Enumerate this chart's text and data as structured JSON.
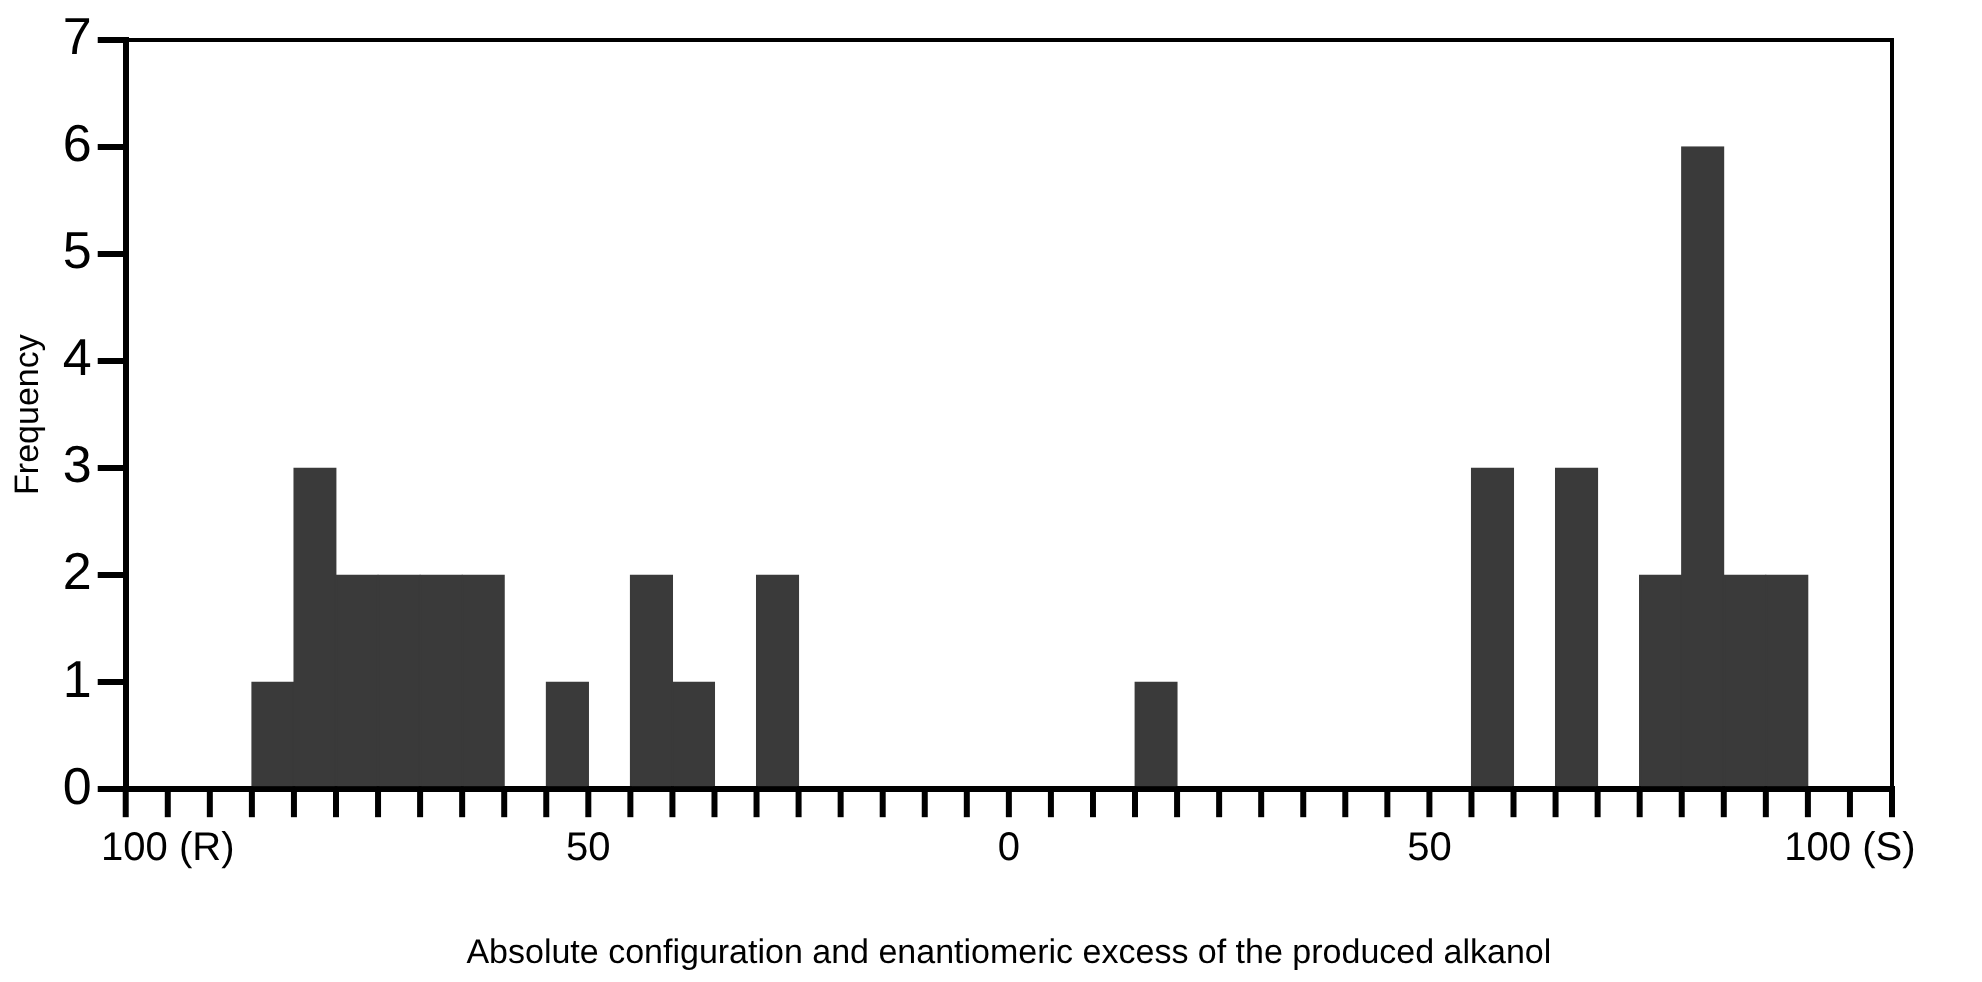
{
  "chart_data": {
    "type": "bar",
    "xlabel": "Absolute configuration and enantiomeric excess of the produced alkanol",
    "ylabel": "Frequency",
    "x": [
      -87.5,
      -82.5,
      -77.5,
      -72.5,
      -67.5,
      -62.5,
      -57.5,
      -52.5,
      -47.5,
      -42.5,
      -37.5,
      -32.5,
      -27.5,
      -22.5,
      -17.5,
      -12.5,
      -7.5,
      -2.5,
      2.5,
      7.5,
      12.5,
      17.5,
      22.5,
      27.5,
      32.5,
      37.5,
      42.5,
      47.5,
      52.5,
      57.5,
      62.5,
      67.5,
      72.5,
      77.5,
      82.5,
      87.5,
      92.5
    ],
    "values": [
      1,
      3,
      2,
      2,
      2,
      2,
      0,
      1,
      0,
      2,
      1,
      0,
      2,
      0,
      0,
      0,
      0,
      0,
      0,
      0,
      0,
      1,
      0,
      0,
      0,
      0,
      0,
      0,
      0,
      3,
      0,
      3,
      0,
      2,
      6,
      2,
      2
    ],
    "color": "#3a3a3a",
    "xlim": [
      -105,
      105
    ],
    "xticks": [
      {
        "value": -105,
        "label": null
      },
      {
        "value": -100,
        "label": "100 (R)"
      },
      {
        "value": -95,
        "label": null
      },
      {
        "value": -90,
        "label": null
      },
      {
        "value": -85,
        "label": null
      },
      {
        "value": -80,
        "label": null
      },
      {
        "value": -75,
        "label": null
      },
      {
        "value": -70,
        "label": null
      },
      {
        "value": -65,
        "label": null
      },
      {
        "value": -60,
        "label": null
      },
      {
        "value": -55,
        "label": null
      },
      {
        "value": -50,
        "label": "50"
      },
      {
        "value": -45,
        "label": null
      },
      {
        "value": -40,
        "label": null
      },
      {
        "value": -35,
        "label": null
      },
      {
        "value": -30,
        "label": null
      },
      {
        "value": -25,
        "label": null
      },
      {
        "value": -20,
        "label": null
      },
      {
        "value": -15,
        "label": null
      },
      {
        "value": -10,
        "label": null
      },
      {
        "value": -5,
        "label": null
      },
      0,
      {
        "value": 5,
        "label": null
      },
      {
        "value": 10,
        "label": null
      },
      {
        "value": 15,
        "label": null
      },
      {
        "value": 20,
        "label": null
      },
      {
        "value": 25,
        "label": null
      },
      {
        "value": 30,
        "label": null
      },
      {
        "value": 35,
        "label": null
      },
      {
        "value": 40,
        "label": null
      },
      {
        "value": 45,
        "label": null
      },
      {
        "value": 50,
        "label": "50"
      },
      {
        "value": 55,
        "label": null
      },
      {
        "value": 60,
        "label": null
      },
      {
        "value": 65,
        "label": null
      },
      {
        "value": 70,
        "label": null
      },
      {
        "value": 75,
        "label": null
      },
      {
        "value": 80,
        "label": null
      },
      {
        "value": 85,
        "label": null
      },
      {
        "value": 90,
        "label": null
      },
      {
        "value": 95,
        "label": null
      },
      {
        "value": 100,
        "label": "100 (S)"
      },
      {
        "value": 105,
        "label": null
      }
    ],
    "ylim": [
      0,
      7
    ],
    "yticks": [
      0,
      1,
      2,
      3,
      4,
      5,
      6,
      7
    ],
    "grid": false,
    "legend": false
  }
}
